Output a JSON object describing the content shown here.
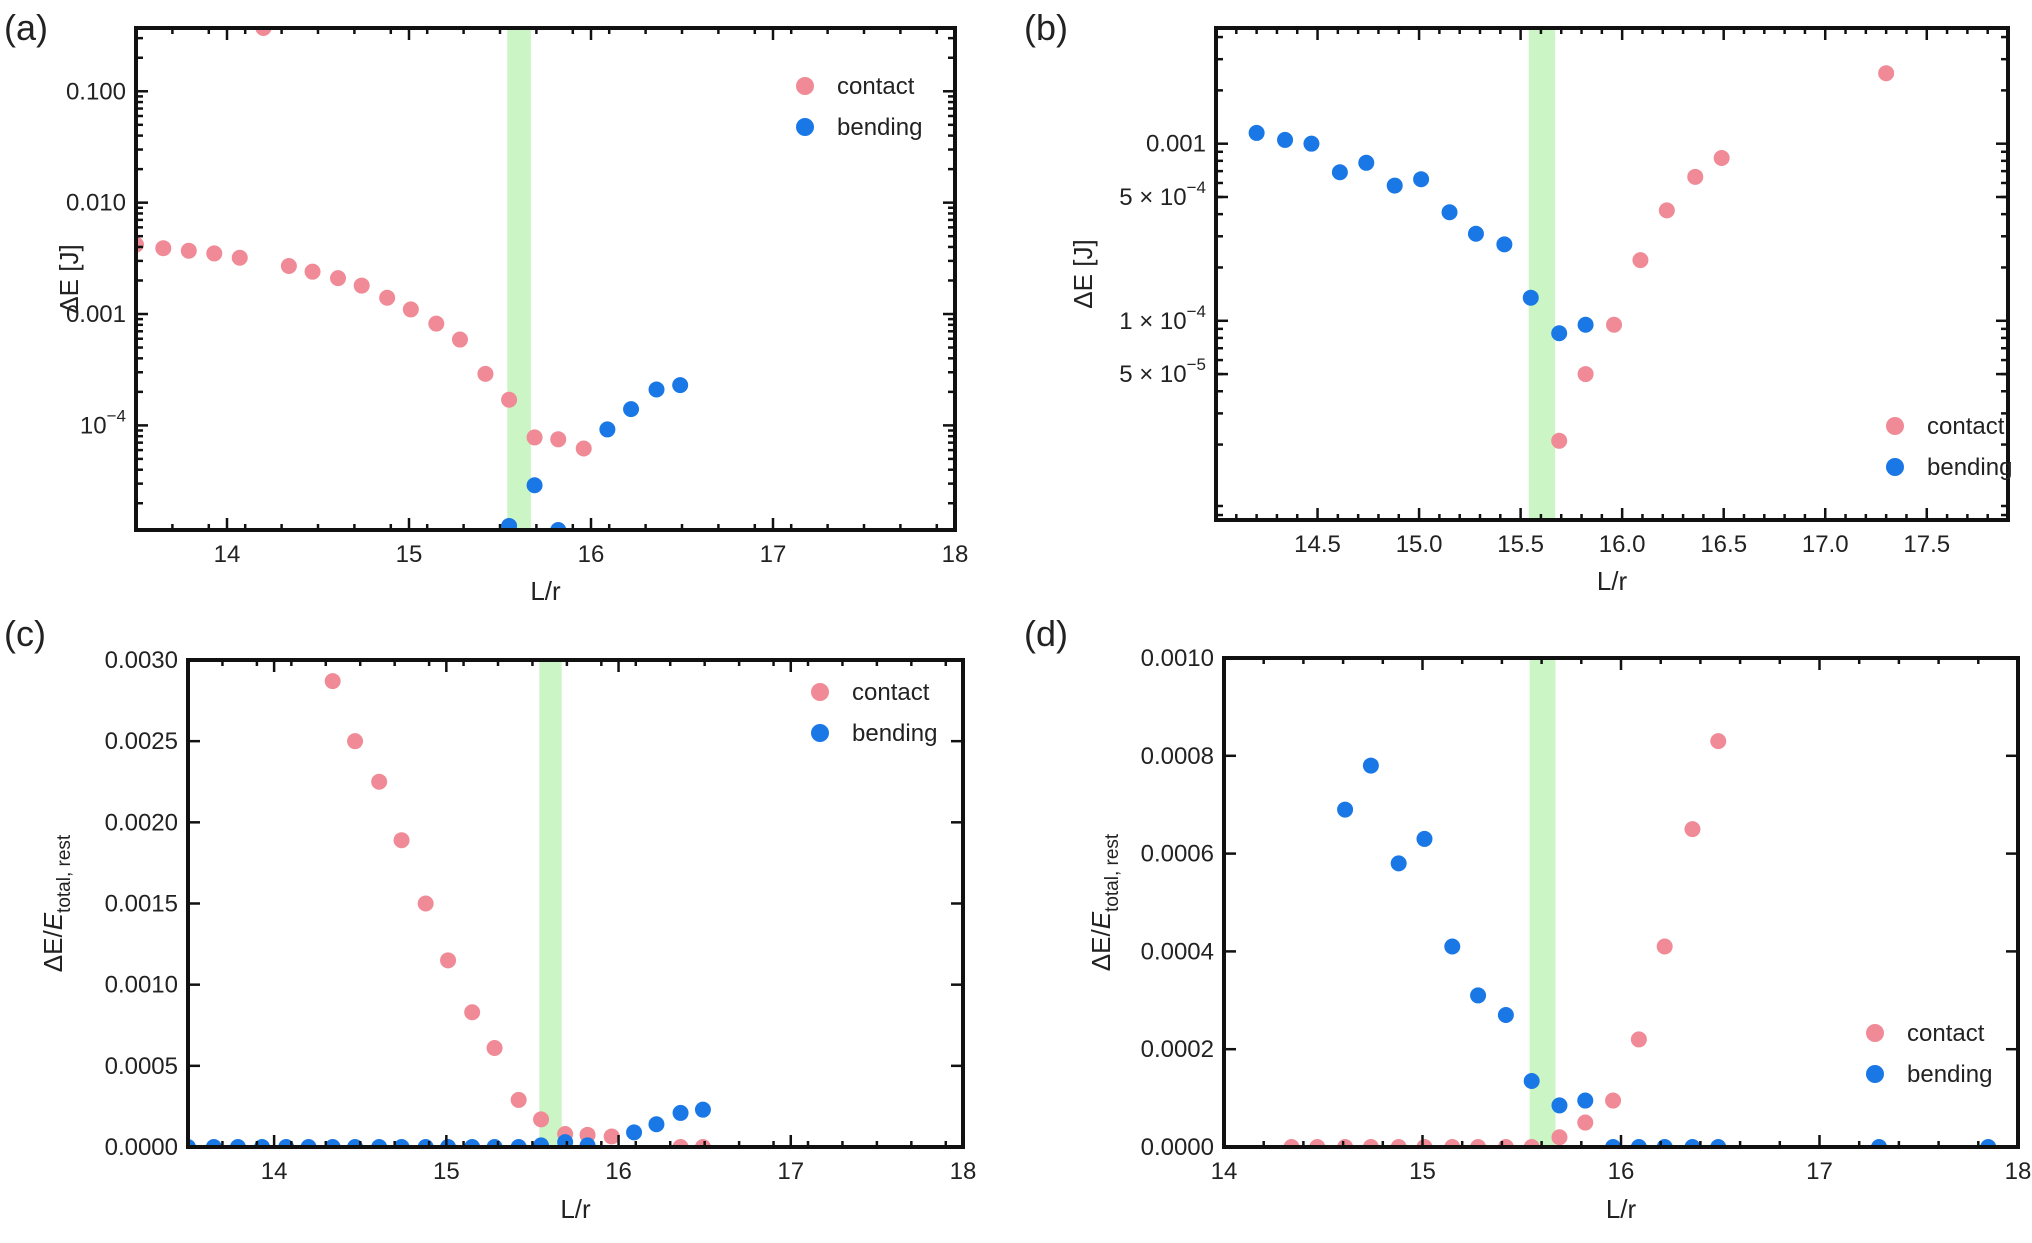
{
  "colors": {
    "contact": "#f08a96",
    "bending": "#1a78e6",
    "band": "#a8ef9e"
  },
  "chart_data": [
    {
      "panel": "(a)",
      "type": "scatter",
      "scale": "log",
      "xlabel": "L/r",
      "ylabel": "ΔE [J]",
      "xlim": [
        13.5,
        18
      ],
      "ylim": [
        1.15e-05,
        0.37
      ],
      "xticks": [
        {
          "v": 14,
          "label": "14"
        },
        {
          "v": 15,
          "label": "15"
        },
        {
          "v": 16,
          "label": "16"
        },
        {
          "v": 17,
          "label": "17"
        },
        {
          "v": 18,
          "label": "18"
        }
      ],
      "yticks": [
        {
          "v": 0.1,
          "label": "0.100"
        },
        {
          "v": 0.01,
          "label": "0.010"
        },
        {
          "v": 0.001,
          "label": "0.001"
        },
        {
          "v": 0.0001,
          "label": "10",
          "sup": "−4"
        }
      ],
      "band": [
        15.54,
        15.67
      ],
      "legend": [
        "contact",
        "bending"
      ],
      "series": [
        {
          "name": "contact",
          "x": [
            13.5,
            13.65,
            13.79,
            13.93,
            14.07,
            14.2,
            14.34,
            14.47,
            14.61,
            14.74,
            14.88,
            15.01,
            15.15,
            15.28,
            15.42,
            15.55,
            15.69,
            15.82,
            15.96
          ],
          "y": [
            0.0042,
            0.0039,
            0.0037,
            0.0035,
            0.0032,
            0.37,
            0.0027,
            0.0024,
            0.0021,
            0.0018,
            0.0014,
            0.0011,
            0.00082,
            0.00059,
            0.00029,
            0.00017,
            7.8e-05,
            7.5e-05,
            6.2e-05
          ]
        },
        {
          "name": "bending",
          "x": [
            15.55,
            15.69,
            15.82,
            16.09,
            16.22,
            16.36,
            16.49
          ],
          "y": [
            1.25e-05,
            2.9e-05,
            1.15e-05,
            9.2e-05,
            0.00014,
            0.00021,
            0.00023
          ]
        }
      ]
    },
    {
      "panel": "(b)",
      "type": "scatter",
      "scale": "log",
      "xlabel": "L/r",
      "ylabel": "ΔE [J]",
      "xlim": [
        14.0,
        17.9
      ],
      "ylim": [
        7.5e-06,
        0.0045
      ],
      "xticks": [
        {
          "v": 14.5,
          "label": "14.5"
        },
        {
          "v": 15.0,
          "label": "15.0"
        },
        {
          "v": 15.5,
          "label": "15.5"
        },
        {
          "v": 16.0,
          "label": "16.0"
        },
        {
          "v": 16.5,
          "label": "16.5"
        },
        {
          "v": 17.0,
          "label": "17.0"
        },
        {
          "v": 17.5,
          "label": "17.5"
        }
      ],
      "yticks": [
        {
          "v": 0.001,
          "label": "0.001"
        },
        {
          "v": 0.0005,
          "label": "5 × 10",
          "sup": "−4"
        },
        {
          "v": 0.0001,
          "label": "1 × 10",
          "sup": "−4"
        },
        {
          "v": 5e-05,
          "label": "5 × 10",
          "sup": "−5"
        }
      ],
      "band": [
        15.54,
        15.67
      ],
      "legend": [
        "contact",
        "bending"
      ],
      "series": [
        {
          "name": "contact",
          "x": [
            15.69,
            15.82,
            15.96,
            16.09,
            16.22,
            16.36,
            16.49,
            17.3
          ],
          "y": [
            2.1e-05,
            5e-05,
            9.5e-05,
            0.00022,
            0.00042,
            0.00065,
            0.00083,
            0.0025
          ]
        },
        {
          "name": "bending",
          "x": [
            14.2,
            14.34,
            14.47,
            14.61,
            14.74,
            14.88,
            15.01,
            15.15,
            15.28,
            15.42,
            15.55,
            15.69,
            15.82
          ],
          "y": [
            0.00115,
            0.00105,
            0.001,
            0.00069,
            0.00078,
            0.00058,
            0.00063,
            0.00041,
            0.00031,
            0.00027,
            0.000135,
            8.5e-05,
            9.5e-05
          ]
        }
      ]
    },
    {
      "panel": "(c)",
      "type": "scatter",
      "scale": "linear",
      "xlabel": "L/r",
      "ylabel": "ΔE/E",
      "ylabel_sub": "total, rest",
      "xlim": [
        13.5,
        18
      ],
      "ylim": [
        0,
        0.003
      ],
      "xticks": [
        {
          "v": 14,
          "label": "14"
        },
        {
          "v": 15,
          "label": "15"
        },
        {
          "v": 16,
          "label": "16"
        },
        {
          "v": 17,
          "label": "17"
        },
        {
          "v": 18,
          "label": "18"
        }
      ],
      "yticks": [
        {
          "v": 0.0,
          "label": "0.0000"
        },
        {
          "v": 0.0005,
          "label": "0.0005"
        },
        {
          "v": 0.001,
          "label": "0.0010"
        },
        {
          "v": 0.0015,
          "label": "0.0015"
        },
        {
          "v": 0.002,
          "label": "0.0020"
        },
        {
          "v": 0.0025,
          "label": "0.0025"
        },
        {
          "v": 0.003,
          "label": "0.0030"
        }
      ],
      "band": [
        15.54,
        15.67
      ],
      "legend": [
        "contact",
        "bending"
      ],
      "series": [
        {
          "name": "contact",
          "x": [
            14.34,
            14.47,
            14.61,
            14.74,
            14.88,
            15.01,
            15.15,
            15.28,
            15.42,
            15.55,
            15.69,
            15.82,
            15.96,
            16.36,
            16.49
          ],
          "y": [
            0.00287,
            0.0025,
            0.00225,
            0.00189,
            0.0015,
            0.00115,
            0.00083,
            0.00061,
            0.00029,
            0.00017,
            8e-05,
            7.5e-05,
            6.5e-05,
            0.0,
            0.0
          ]
        },
        {
          "name": "bending",
          "x": [
            13.5,
            13.65,
            13.79,
            13.93,
            14.07,
            14.2,
            14.34,
            14.47,
            14.61,
            14.74,
            14.88,
            15.01,
            15.15,
            15.28,
            15.42,
            15.55,
            15.69,
            15.82,
            16.09,
            16.22,
            16.36,
            16.49
          ],
          "y": [
            0.0,
            0.0,
            0.0,
            0.0,
            0.0,
            0.0,
            0.0,
            0.0,
            0.0,
            0.0,
            0.0,
            0.0,
            0.0,
            0.0,
            0.0,
            1e-05,
            3e-05,
            1e-05,
            9e-05,
            0.00014,
            0.00021,
            0.00023
          ]
        }
      ]
    },
    {
      "panel": "(d)",
      "type": "scatter",
      "scale": "linear",
      "xlabel": "L/r",
      "ylabel": "ΔE/E",
      "ylabel_sub": "total, rest",
      "xlim": [
        14,
        18
      ],
      "ylim": [
        0,
        0.001
      ],
      "xticks": [
        {
          "v": 14,
          "label": "14"
        },
        {
          "v": 15,
          "label": "15"
        },
        {
          "v": 16,
          "label": "16"
        },
        {
          "v": 17,
          "label": "17"
        },
        {
          "v": 18,
          "label": "18"
        }
      ],
      "yticks": [
        {
          "v": 0.0,
          "label": "0.0000"
        },
        {
          "v": 0.0002,
          "label": "0.0002"
        },
        {
          "v": 0.0004,
          "label": "0.0004"
        },
        {
          "v": 0.0006,
          "label": "0.0006"
        },
        {
          "v": 0.0008,
          "label": "0.0008"
        },
        {
          "v": 0.001,
          "label": "0.0010"
        }
      ],
      "band": [
        15.54,
        15.67
      ],
      "legend": [
        "contact",
        "bending"
      ],
      "series": [
        {
          "name": "contact",
          "x": [
            14.34,
            14.47,
            14.61,
            14.74,
            14.88,
            15.01,
            15.15,
            15.28,
            15.42,
            15.55,
            15.69,
            15.82,
            15.96,
            16.09,
            16.22,
            16.36,
            16.49
          ],
          "y": [
            0.0,
            0.0,
            0.0,
            0.0,
            0.0,
            0.0,
            0.0,
            0.0,
            0.0,
            0.0,
            2e-05,
            5e-05,
            9.5e-05,
            0.00022,
            0.00041,
            0.00065,
            0.00083
          ]
        },
        {
          "name": "bending",
          "x": [
            14.61,
            14.74,
            14.88,
            15.01,
            15.15,
            15.28,
            15.42,
            15.55,
            15.69,
            15.82,
            15.96,
            16.09,
            16.22,
            16.36,
            16.49,
            17.3,
            17.85
          ],
          "y": [
            0.00069,
            0.00078,
            0.00058,
            0.00063,
            0.00041,
            0.00031,
            0.00027,
            0.000135,
            8.5e-05,
            9.5e-05,
            0.0,
            0.0,
            0.0,
            0.0,
            0.0,
            0.0,
            0.0
          ]
        }
      ]
    }
  ]
}
